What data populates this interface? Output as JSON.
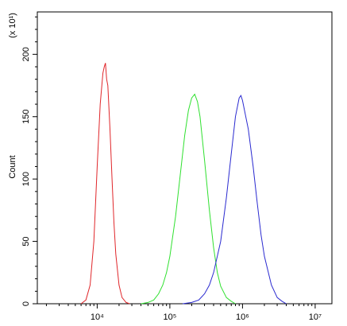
{
  "chart_data": {
    "type": "line",
    "y_label": "Count",
    "y_multiplier": "(x 10¹)",
    "x_scale": "log",
    "xlim": [
      1500,
      17000000
    ],
    "xticks": [
      {
        "value": 10000,
        "label": "10⁴"
      },
      {
        "value": 100000,
        "label": "10⁵"
      },
      {
        "value": 1000000,
        "label": "10⁶"
      },
      {
        "value": 10000000,
        "label": "10⁷"
      }
    ],
    "xminorticks": [
      2000,
      3000,
      4000,
      5000,
      6000,
      7000,
      8000,
      9000,
      20000,
      30000,
      40000,
      50000,
      60000,
      70000,
      80000,
      90000,
      200000,
      300000,
      400000,
      500000,
      600000,
      700000,
      800000,
      900000,
      2000000,
      3000000,
      4000000,
      5000000,
      6000000,
      7000000,
      8000000,
      9000000
    ],
    "ylim": [
      0,
      234
    ],
    "yticks": [
      0,
      50,
      100,
      150,
      200
    ],
    "yminorticks": [
      10,
      20,
      30,
      40,
      60,
      70,
      80,
      90,
      110,
      120,
      130,
      140,
      160,
      170,
      180,
      190,
      210,
      220,
      230
    ],
    "series": [
      {
        "color": "#e0262a",
        "x": [
          6000,
          7000,
          8000,
          9000,
          10000,
          11000,
          12000,
          12500,
          13000,
          13500,
          14000,
          15000,
          16000,
          17000,
          18000,
          20000,
          22000,
          25000,
          28000
        ],
        "values": [
          0,
          3,
          15,
          50,
          110,
          160,
          185,
          190,
          193,
          180,
          175,
          140,
          100,
          65,
          40,
          15,
          5,
          1,
          0
        ]
      },
      {
        "color": "#2fe02f",
        "x": [
          40000,
          50000,
          60000,
          70000,
          80000,
          90000,
          100000,
          120000,
          140000,
          160000,
          180000,
          200000,
          220000,
          240000,
          260000,
          300000,
          350000,
          400000,
          450000,
          500000,
          600000,
          700000,
          800000
        ],
        "values": [
          0,
          1,
          3,
          8,
          15,
          25,
          38,
          70,
          105,
          135,
          155,
          165,
          168,
          162,
          150,
          115,
          75,
          45,
          25,
          14,
          5,
          2,
          0
        ]
      },
      {
        "color": "#2a2ad0",
        "x": [
          150000,
          200000,
          250000,
          300000,
          350000,
          400000,
          500000,
          600000,
          700000,
          800000,
          900000,
          950000,
          1000000,
          1200000,
          1400000,
          1600000,
          1800000,
          2000000,
          2500000,
          3000000,
          3500000,
          4000000
        ],
        "values": [
          0,
          1,
          3,
          8,
          15,
          25,
          50,
          85,
          120,
          150,
          165,
          167,
          163,
          140,
          110,
          80,
          55,
          38,
          15,
          5,
          2,
          0
        ]
      }
    ]
  }
}
